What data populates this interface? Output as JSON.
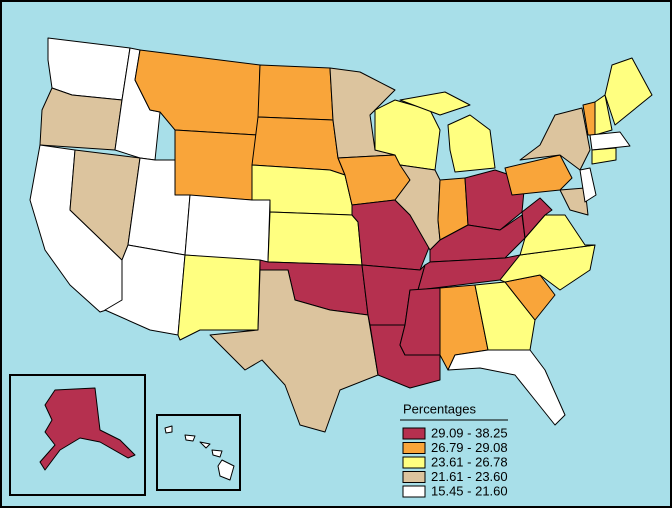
{
  "legend": {
    "title": "Percentages",
    "items": [
      {
        "label": "29.09 - 38.25",
        "color": "#b5304f"
      },
      {
        "label": "26.79 - 29.08",
        "color": "#f9a53a"
      },
      {
        "label": "23.61 - 26.78",
        "color": "#ffff80"
      },
      {
        "label": "21.61 - 23.60",
        "color": "#dcc49e"
      },
      {
        "label": "15.45 - 21.60",
        "color": "#ffffff"
      }
    ]
  }
}
